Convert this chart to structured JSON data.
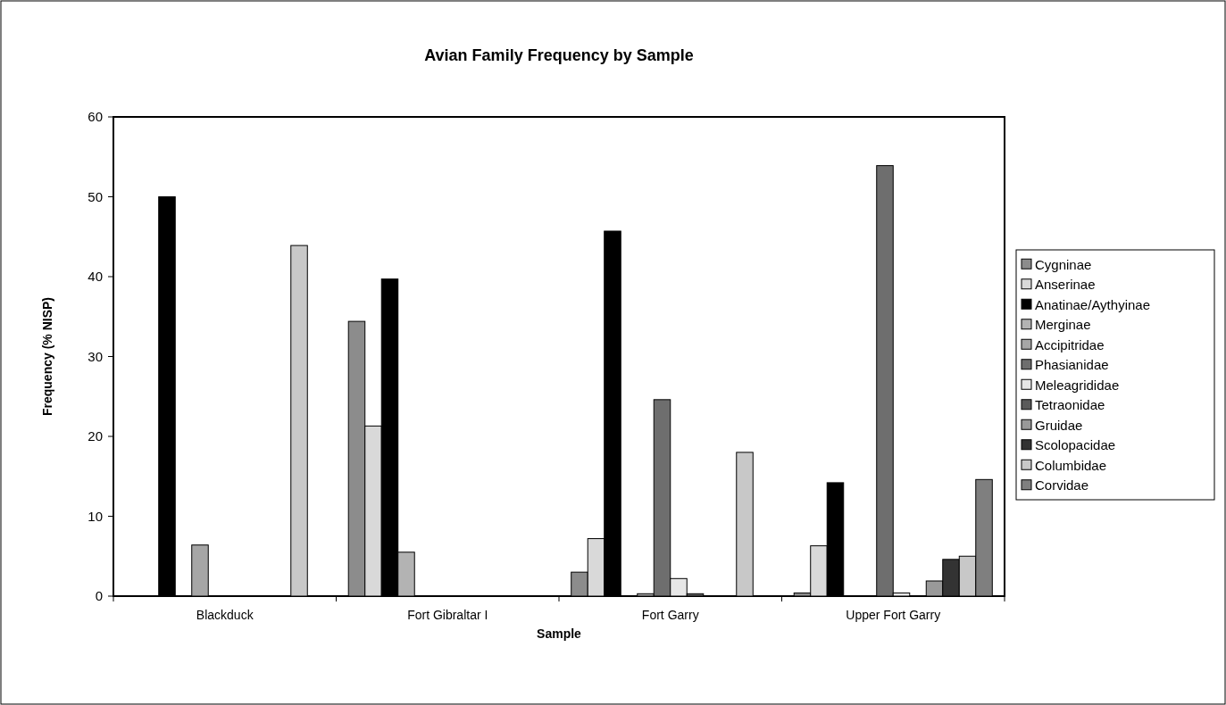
{
  "chart_data": {
    "type": "bar",
    "title": "Avian Family Frequency by Sample",
    "xlabel": "Sample",
    "ylabel": "Frequency (% NISP)",
    "categories": [
      "Blackduck",
      "Fort Gibraltar I",
      "Fort Garry",
      "Upper Fort Garry"
    ],
    "ylim": [
      0,
      60
    ],
    "yticks": [
      0,
      10,
      20,
      30,
      40,
      50,
      60
    ],
    "grid": false,
    "legend": "right",
    "series": [
      {
        "name": "Cygninae",
        "color": "#8c8c8c",
        "values": [
          null,
          34.4,
          3.0,
          0.4
        ]
      },
      {
        "name": "Anserinae",
        "color": "#d9d9d9",
        "values": [
          null,
          21.3,
          7.2,
          6.3
        ]
      },
      {
        "name": "Anatinae/Aythyinae",
        "color": "#000000",
        "values": [
          50,
          39.7,
          45.7,
          14.2
        ]
      },
      {
        "name": "Merginae",
        "color": "#b3b3b3",
        "values": [
          null,
          5.5,
          null,
          null
        ]
      },
      {
        "name": "Accipitridae",
        "color": "#a6a6a6",
        "values": [
          6.4,
          null,
          0.3,
          null
        ]
      },
      {
        "name": "Phasianidae",
        "color": "#6e6e6e",
        "values": [
          null,
          null,
          24.6,
          53.9
        ]
      },
      {
        "name": "Meleagrididae",
        "color": "#e6e6e6",
        "values": [
          null,
          null,
          2.2,
          0.4
        ]
      },
      {
        "name": "Tetraonidae",
        "color": "#5a5a5a",
        "values": [
          null,
          null,
          0.3,
          null
        ]
      },
      {
        "name": "Gruidae",
        "color": "#999999",
        "values": [
          null,
          null,
          null,
          1.9
        ]
      },
      {
        "name": "Scolopacidae",
        "color": "#333333",
        "values": [
          null,
          null,
          null,
          4.6
        ]
      },
      {
        "name": "Columbidae",
        "color": "#c8c8c8",
        "values": [
          43.9,
          null,
          18.0,
          5.0
        ]
      },
      {
        "name": "Corvidae",
        "color": "#7f7f7f",
        "values": [
          null,
          null,
          null,
          14.6
        ]
      }
    ]
  }
}
